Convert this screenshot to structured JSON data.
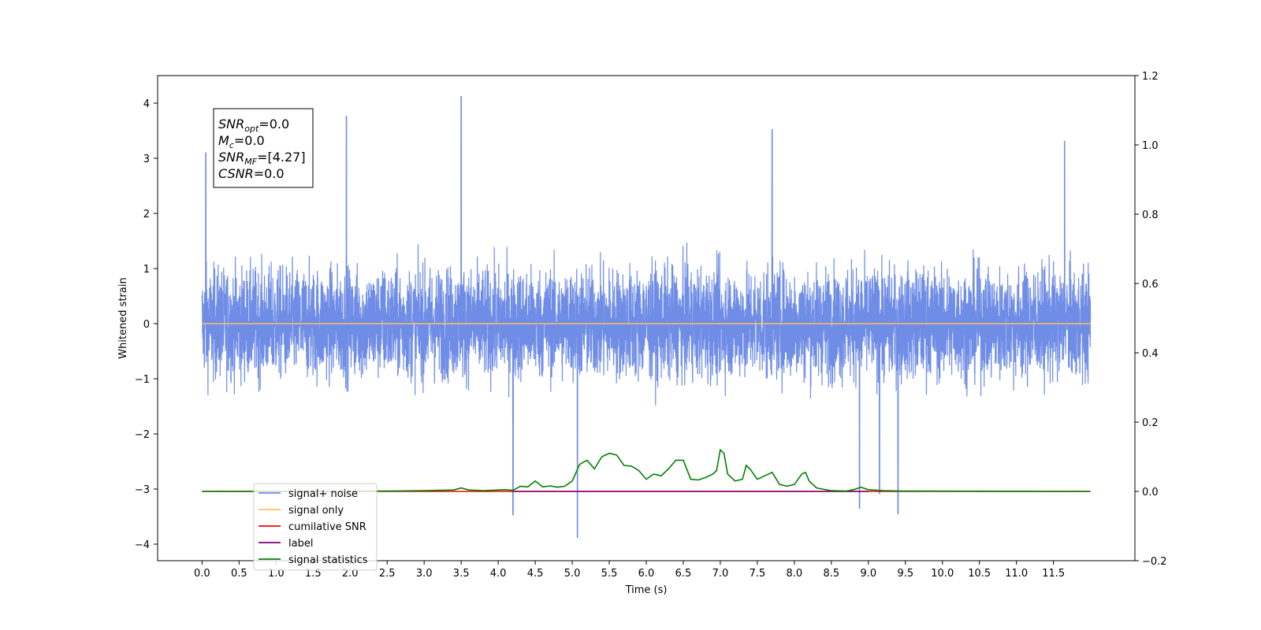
{
  "chart_data": {
    "type": "line",
    "title": "",
    "xlabel": "Time (s)",
    "ylabel": "Whitened strain",
    "xlim": [
      -0.6,
      12.6
    ],
    "ylim": [
      -4.3,
      4.5
    ],
    "ylim_right": [
      -0.2,
      1.2
    ],
    "x_ticks": [
      0.0,
      0.5,
      1.0,
      1.5,
      2.0,
      2.5,
      3.0,
      3.5,
      4.0,
      4.5,
      5.0,
      5.5,
      6.0,
      6.5,
      7.0,
      7.5,
      8.0,
      8.5,
      9.0,
      9.5,
      10.0,
      10.5,
      11.0,
      11.5
    ],
    "x_tick_labels": [
      "0.0",
      "0.5",
      "1.0",
      "1.5",
      "2.0",
      "2.5",
      "3.0",
      "3.5",
      "4.0",
      "4.5",
      "5.0",
      "5.5",
      "6.0",
      "6.5",
      "7.0",
      "7.5",
      "8.0",
      "8.5",
      "9.0",
      "9.5",
      "10.0",
      "10.5",
      "11.0",
      "11.5"
    ],
    "y_ticks": [
      -4,
      -3,
      -2,
      -1,
      0,
      1,
      2,
      3,
      4
    ],
    "y_tick_labels": [
      "−4",
      "−3",
      "−2",
      "−1",
      "0",
      "1",
      "2",
      "3",
      "4"
    ],
    "y_right_ticks": [
      -0.2,
      0.0,
      0.2,
      0.4,
      0.6,
      0.8,
      1.0,
      1.2
    ],
    "y_right_tick_labels": [
      "−0.2",
      "0.0",
      "0.2",
      "0.4",
      "0.6",
      "0.8",
      "1.0",
      "1.2"
    ],
    "grid": false,
    "legend_position": "lower-left",
    "series": [
      {
        "name": "signal+ noise",
        "color": "#6f8de6",
        "axis": "left",
        "x_range": [
          0.0,
          12.0
        ],
        "description_values": {
          "typical_band": [
            -1.7,
            1.7
          ],
          "peaks": [
            [
              3.5,
              4.12
            ],
            [
              1.95,
              3.77
            ],
            [
              7.7,
              3.52
            ],
            [
              0.05,
              3.1
            ],
            [
              11.65,
              3.31
            ],
            [
              5.07,
              -3.88
            ],
            [
              4.2,
              -3.47
            ],
            [
              9.4,
              -3.45
            ],
            [
              8.88,
              -3.35
            ],
            [
              9.15,
              -3.08
            ]
          ]
        }
      },
      {
        "name": "signal only",
        "color": "#ffbf5a",
        "axis": "left",
        "x": [
          0.0,
          12.0
        ],
        "y": [
          0.0,
          0.0
        ]
      },
      {
        "name": "cumilative SNR",
        "color": "#ff0000",
        "axis": "right",
        "x": [
          0.0,
          12.0
        ],
        "y": [
          0.0,
          0.0
        ]
      },
      {
        "name": "label",
        "color": "#800080",
        "axis": "right",
        "x": [
          4.2,
          9.0
        ],
        "y": [
          0.0,
          0.0
        ]
      },
      {
        "name": "signal statistics",
        "color": "#008000",
        "axis": "right",
        "x": [
          0.0,
          2.5,
          3.0,
          3.4,
          3.5,
          3.6,
          3.8,
          4.0,
          4.1,
          4.2,
          4.3,
          4.4,
          4.5,
          4.6,
          4.7,
          4.8,
          4.9,
          5.0,
          5.1,
          5.2,
          5.3,
          5.4,
          5.5,
          5.6,
          5.7,
          5.8,
          5.9,
          6.0,
          6.1,
          6.2,
          6.3,
          6.4,
          6.5,
          6.6,
          6.7,
          6.8,
          6.9,
          6.95,
          7.0,
          7.05,
          7.1,
          7.2,
          7.3,
          7.35,
          7.4,
          7.5,
          7.6,
          7.7,
          7.8,
          7.9,
          8.0,
          8.1,
          8.15,
          8.2,
          8.3,
          8.5,
          8.7,
          8.8,
          8.9,
          9.0,
          9.2,
          9.5,
          12.0
        ],
        "y": [
          0.0,
          0.001,
          0.002,
          0.004,
          0.01,
          0.004,
          0.002,
          0.004,
          0.005,
          0.003,
          0.015,
          0.013,
          0.03,
          0.013,
          0.016,
          0.012,
          0.015,
          0.03,
          0.078,
          0.09,
          0.065,
          0.1,
          0.11,
          0.105,
          0.075,
          0.073,
          0.06,
          0.035,
          0.05,
          0.045,
          0.065,
          0.09,
          0.09,
          0.035,
          0.033,
          0.04,
          0.05,
          0.06,
          0.12,
          0.11,
          0.05,
          0.03,
          0.035,
          0.075,
          0.065,
          0.035,
          0.045,
          0.055,
          0.02,
          0.015,
          0.02,
          0.05,
          0.055,
          0.03,
          0.01,
          0.002,
          0.001,
          0.005,
          0.012,
          0.005,
          0.002,
          0.001,
          0.0
        ]
      }
    ],
    "annotation": [
      {
        "label": "SNR",
        "sub": "opt",
        "value": "=0.0"
      },
      {
        "label": "M",
        "sub": "c",
        "value": "=0.0"
      },
      {
        "label": "SNR",
        "sub": "MF",
        "value": "=[4.27]"
      },
      {
        "label": "CSNR",
        "sub": "",
        "value": "=0.0"
      }
    ]
  }
}
